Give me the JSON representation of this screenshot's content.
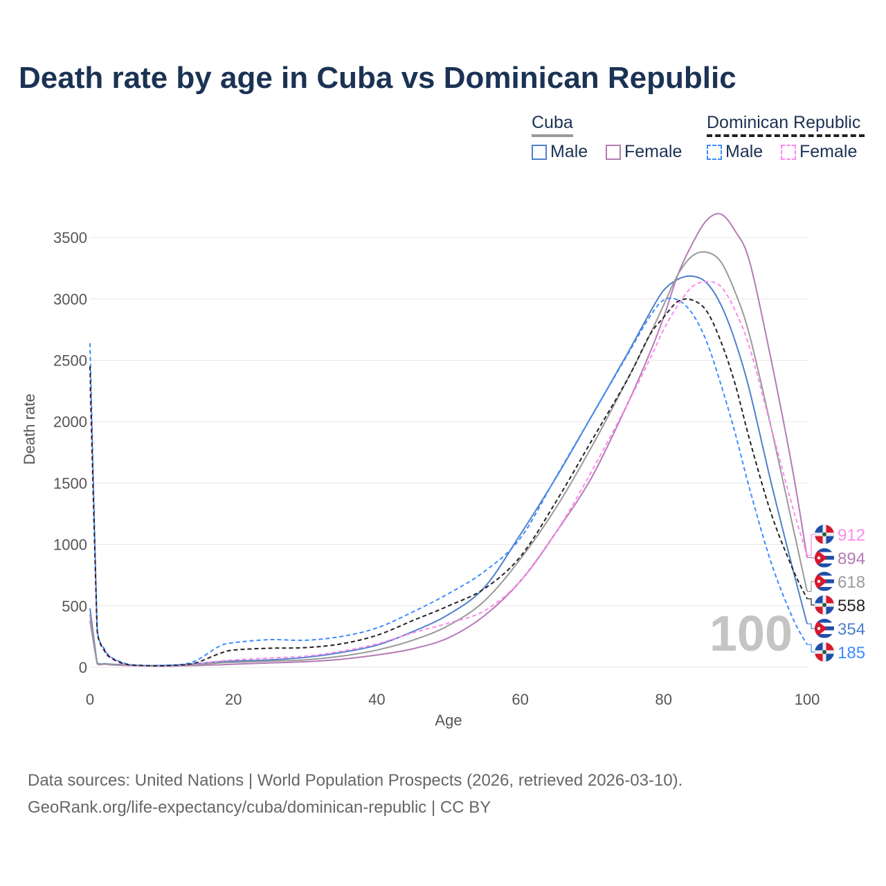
{
  "title": "Death rate by age in Cuba vs Dominican Republic",
  "legend": {
    "groups": [
      {
        "name": "Cuba",
        "items": [
          "Male",
          "Female"
        ]
      },
      {
        "name": "Dominican Republic",
        "items": [
          "Male",
          "Female"
        ]
      }
    ]
  },
  "watermark": "100",
  "footer": {
    "line1": "Data sources: United Nations | World Population Prospects (2026, retrieved 2026-03-10).",
    "line2": "GeoRank.org/life-expectancy/cuba/dominican-republic | CC BY"
  },
  "chart_data": {
    "type": "line",
    "title": "Death rate by age in Cuba vs Dominican Republic",
    "xlabel": "Age",
    "ylabel": "Death rate",
    "xlim": [
      0,
      100
    ],
    "ylim": [
      0,
      3700
    ],
    "xticks": [
      0,
      20,
      40,
      60,
      80,
      100
    ],
    "yticks": [
      0,
      500,
      1000,
      1500,
      2000,
      2500,
      3000,
      3500
    ],
    "grid": true,
    "x": [
      0,
      1,
      2,
      3,
      5,
      7,
      10,
      13,
      15,
      18,
      20,
      25,
      30,
      35,
      40,
      45,
      50,
      55,
      60,
      65,
      70,
      75,
      78,
      80,
      82,
      84,
      86,
      88,
      90,
      92,
      95,
      98,
      100
    ],
    "series": [
      {
        "name": "Cuba Male",
        "country": "cuba",
        "color": "#4f7fcc",
        "dashed": false,
        "end_label": "354",
        "values": [
          480,
          40,
          30,
          25,
          20,
          15,
          15,
          20,
          30,
          45,
          50,
          60,
          80,
          120,
          180,
          290,
          430,
          650,
          1080,
          1545,
          2050,
          2560,
          2880,
          3070,
          3160,
          3185,
          3130,
          2950,
          2650,
          2250,
          1500,
          800,
          354
        ]
      },
      {
        "name": "Cuba Female",
        "country": "cuba",
        "color": "#b57ab5",
        "dashed": false,
        "end_label": "894",
        "values": [
          380,
          30,
          25,
          20,
          15,
          12,
          10,
          12,
          15,
          20,
          25,
          35,
          45,
          65,
          100,
          150,
          240,
          420,
          700,
          1100,
          1550,
          2150,
          2550,
          2850,
          3200,
          3450,
          3640,
          3690,
          3550,
          3300,
          2500,
          1600,
          894
        ]
      },
      {
        "name": "Cuba Total",
        "country": "cuba",
        "color": "#999999",
        "dashed": false,
        "end_label": "618",
        "values": [
          430,
          35,
          28,
          22,
          18,
          14,
          12,
          15,
          22,
          35,
          40,
          50,
          60,
          90,
          140,
          220,
          340,
          540,
          880,
          1300,
          1800,
          2350,
          2700,
          2950,
          3200,
          3350,
          3380,
          3300,
          3050,
          2700,
          1950,
          1150,
          618
        ]
      },
      {
        "name": "Dominican Republic Male",
        "country": "dr",
        "color": "#3d8bff",
        "dashed": true,
        "end_label": "185",
        "values": [
          2640,
          320,
          150,
          80,
          30,
          15,
          15,
          25,
          60,
          170,
          200,
          225,
          220,
          250,
          320,
          450,
          600,
          780,
          1050,
          1550,
          2050,
          2550,
          2850,
          2990,
          2990,
          2880,
          2650,
          2300,
          1900,
          1450,
          850,
          400,
          185
        ]
      },
      {
        "name": "Dominican Republic Female",
        "country": "dr",
        "color": "#ff88ee",
        "dashed": true,
        "end_label": "912",
        "values": [
          2280,
          300,
          130,
          70,
          20,
          12,
          10,
          15,
          30,
          50,
          60,
          75,
          90,
          130,
          190,
          280,
          360,
          460,
          700,
          1100,
          1600,
          2150,
          2500,
          2750,
          2950,
          3100,
          3140,
          3100,
          2900,
          2600,
          1950,
          1300,
          912
        ]
      },
      {
        "name": "Dominican Republic Total",
        "country": "dr",
        "color": "#222222",
        "dashed": true,
        "end_label": "558",
        "values": [
          2450,
          310,
          140,
          75,
          25,
          15,
          12,
          20,
          40,
          110,
          140,
          155,
          160,
          190,
          260,
          380,
          500,
          640,
          900,
          1350,
          1850,
          2350,
          2700,
          2850,
          2980,
          2990,
          2900,
          2650,
          2300,
          1850,
          1250,
          800,
          558
        ]
      }
    ]
  }
}
